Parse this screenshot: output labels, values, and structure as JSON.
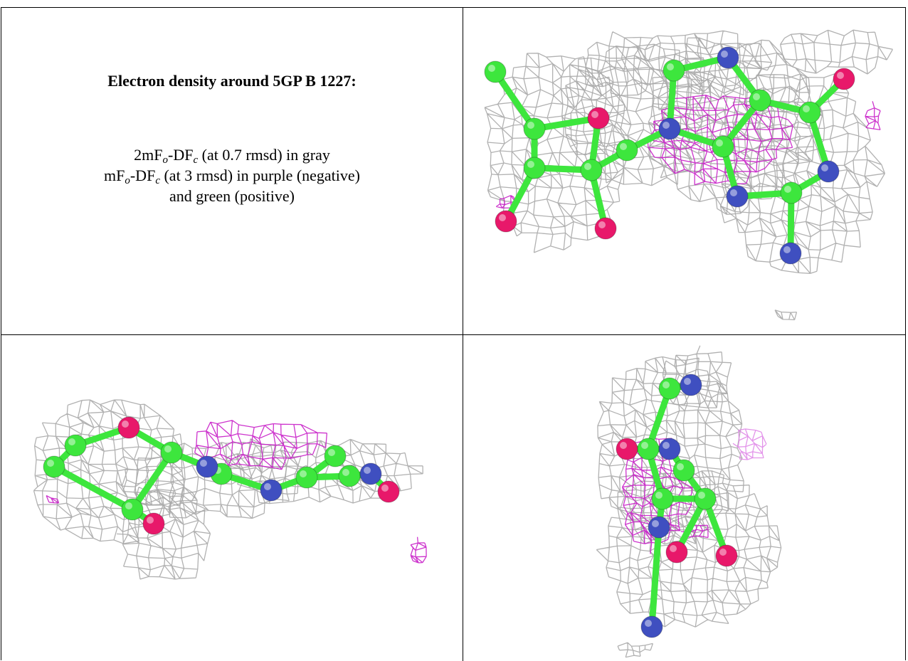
{
  "header": {
    "title": "Electron density around 5GP B 1227:"
  },
  "legend": {
    "lines": [
      [
        "2mF",
        "o",
        "-DF",
        "c",
        " (at 0.7 rmsd) in gray"
      ],
      [
        "mF",
        "o",
        "-DF",
        "c",
        " (at 3 rmsd) in purple (negative)"
      ],
      [
        "and green (positive)"
      ]
    ]
  }
}
